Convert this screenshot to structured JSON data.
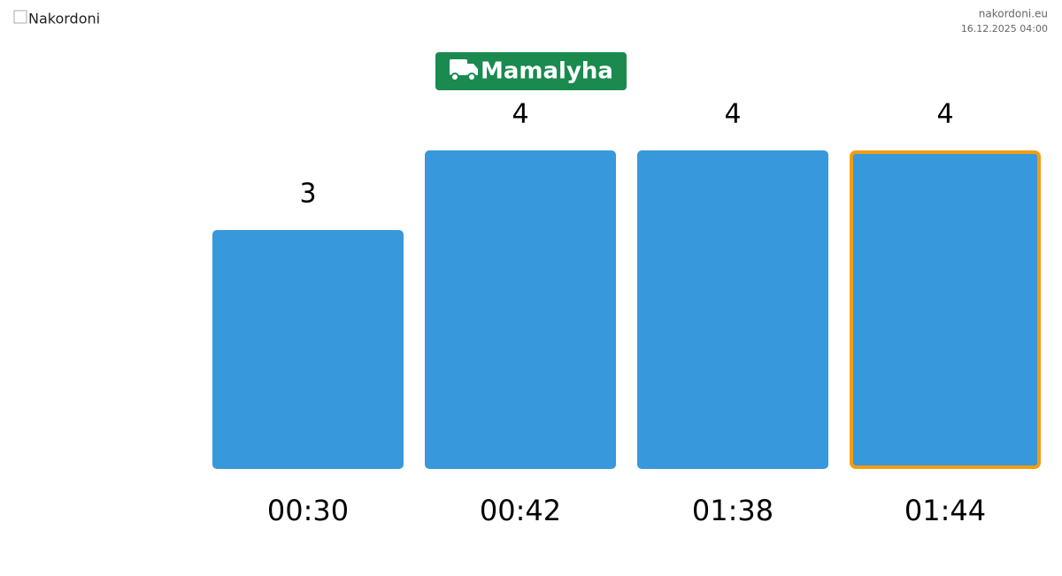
{
  "header": {
    "logo_alt": "Nakordoni",
    "site": "nakordoni.eu",
    "timestamp": "16.12.2025 04:00"
  },
  "chart_data": {
    "type": "bar",
    "title": "Mamalyha",
    "categories": [
      "00:30",
      "00:42",
      "01:38",
      "01:44"
    ],
    "values": [
      3,
      4,
      4,
      4
    ],
    "color": "#3798db",
    "title_color": "#1a8a4f",
    "highlighted": 3,
    "highlight_color": "#f39c12"
  }
}
